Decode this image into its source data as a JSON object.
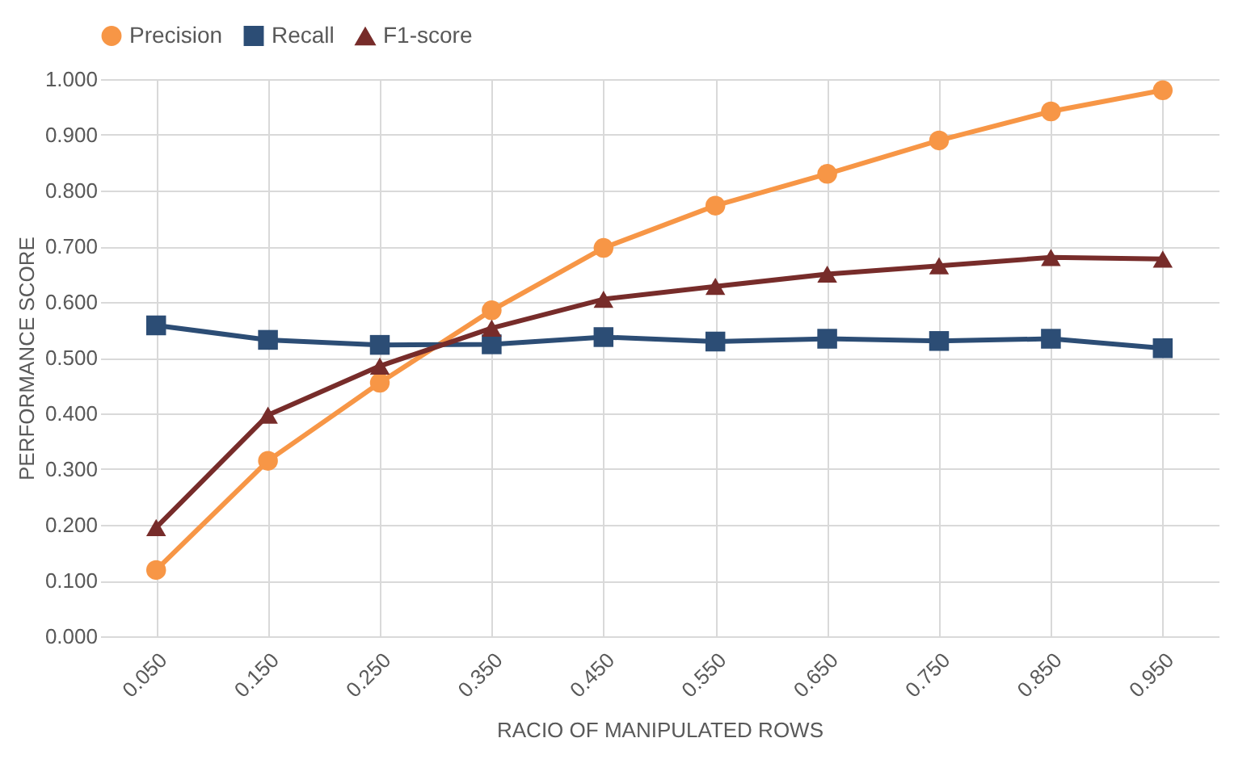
{
  "chart_data": {
    "type": "line",
    "xlabel": "RACIO OF MANIPULATED ROWS",
    "ylabel": "PERFORMANCE SCORE",
    "categories": [
      "0.050",
      "0.150",
      "0.250",
      "0.350",
      "0.450",
      "0.550",
      "0.650",
      "0.750",
      "0.850",
      "0.950"
    ],
    "series": [
      {
        "name": "Precision",
        "color": "#f79646",
        "marker": "circle",
        "values": [
          0.119,
          0.315,
          0.455,
          0.585,
          0.697,
          0.773,
          0.83,
          0.89,
          0.942,
          0.98
        ]
      },
      {
        "name": "Recall",
        "color": "#2c4d75",
        "marker": "square",
        "values": [
          0.558,
          0.532,
          0.523,
          0.524,
          0.537,
          0.529,
          0.534,
          0.53,
          0.534,
          0.517
        ]
      },
      {
        "name": "F1-score",
        "color": "#772c2a",
        "marker": "triangle",
        "values": [
          0.195,
          0.397,
          0.485,
          0.553,
          0.605,
          0.628,
          0.65,
          0.665,
          0.68,
          0.677
        ]
      }
    ],
    "ylim": [
      0,
      1
    ],
    "yticks": [
      {
        "value": 0,
        "label": "0.000"
      },
      {
        "value": 0.1,
        "label": "0.100"
      },
      {
        "value": 0.2,
        "label": "0.200"
      },
      {
        "value": 0.3,
        "label": "0.300"
      },
      {
        "value": 0.4,
        "label": "0.400"
      },
      {
        "value": 0.5,
        "label": "0.500"
      },
      {
        "value": 0.6,
        "label": "0.600"
      },
      {
        "value": 0.7,
        "label": "0.700"
      },
      {
        "value": 0.8,
        "label": "0.800"
      },
      {
        "value": 0.9,
        "label": "0.900"
      },
      {
        "value": 1,
        "label": "1.000"
      }
    ],
    "grid": true,
    "legend": "top",
    "line_style": "solid"
  }
}
